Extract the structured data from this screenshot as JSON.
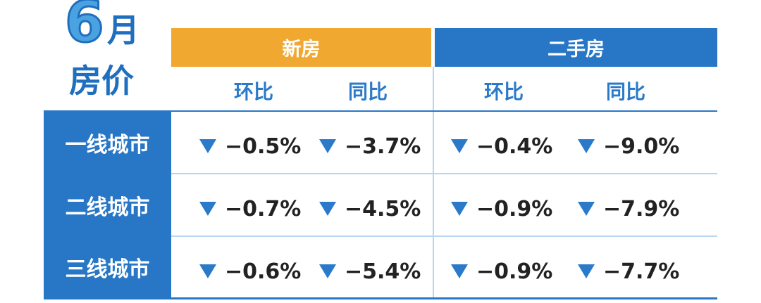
{
  "title": {
    "number": "6",
    "unit": "月",
    "subject": "房价"
  },
  "table": {
    "groups": [
      "新房",
      "二手房"
    ],
    "columns": [
      "环比",
      "同比",
      "环比",
      "同比"
    ],
    "rows": [
      {
        "label": "一线城市",
        "cells": [
          "−0.5%",
          "−3.7%",
          "−0.4%",
          "−9.0%"
        ]
      },
      {
        "label": "二线城市",
        "cells": [
          "−0.7%",
          "−4.5%",
          "−0.9%",
          "−7.9%"
        ]
      },
      {
        "label": "三线城市",
        "cells": [
          "−0.6%",
          "−5.4%",
          "−0.9%",
          "−7.7%"
        ]
      }
    ]
  }
}
